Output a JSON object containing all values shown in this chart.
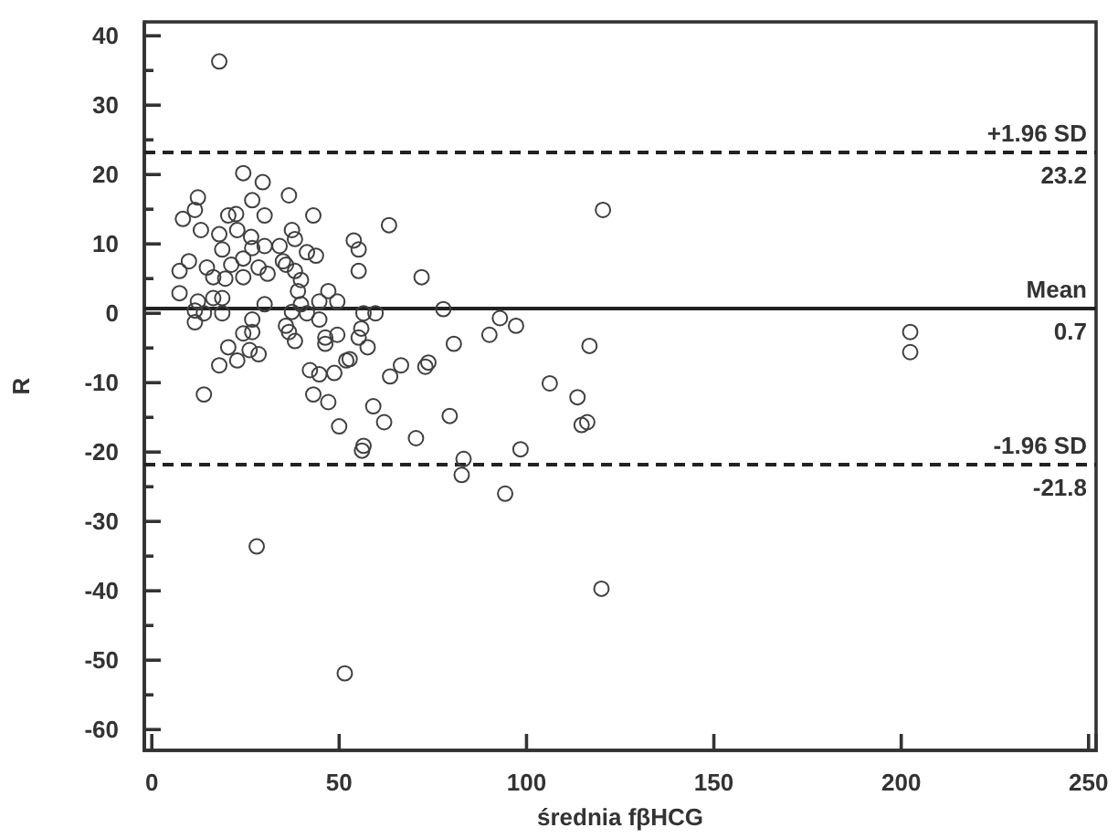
{
  "chart_data": {
    "type": "scatter",
    "xlabel": "średnia fβHCG",
    "ylabel": "R",
    "marker": "circle",
    "color": "#404040",
    "xlim": [
      -2,
      252
    ],
    "ylim": [
      -63,
      42
    ],
    "xticks": [
      0,
      50,
      100,
      150,
      200,
      250
    ],
    "yticks": [
      {
        "value": -60,
        "label": "-60"
      },
      {
        "value": -55,
        "label": null
      },
      {
        "value": -50,
        "label": "-50"
      },
      {
        "value": -45,
        "label": null
      },
      {
        "value": -40,
        "label": "-40"
      },
      {
        "value": -35,
        "label": null
      },
      {
        "value": -30,
        "label": "-30"
      },
      {
        "value": -25,
        "label": null
      },
      {
        "value": -20,
        "label": "-20"
      },
      {
        "value": -15,
        "label": null
      },
      {
        "value": -10,
        "label": "-10"
      },
      {
        "value": -5,
        "label": null
      },
      {
        "value": 0,
        "label": "0"
      },
      {
        "value": 5,
        "label": null
      },
      {
        "value": 10,
        "label": "10"
      },
      {
        "value": 15,
        "label": null
      },
      {
        "value": 20,
        "label": "20"
      },
      {
        "value": 25,
        "label": null
      },
      {
        "value": 30,
        "label": "30"
      },
      {
        "value": 35,
        "label": null
      },
      {
        "value": 40,
        "label": "40"
      }
    ],
    "grid": false,
    "ref_lines": [
      {
        "axis": "y",
        "value": 23.2,
        "label": "+1.96 SD",
        "line_style": "dashed"
      },
      {
        "axis": "y",
        "value": 0.7,
        "label": "Mean",
        "line_style": "solid"
      },
      {
        "axis": "y",
        "value": -21.8,
        "label": "-1.96 SD",
        "line_style": "dashed"
      }
    ],
    "annotations": [
      {
        "text": "23.2",
        "y": 23.2
      },
      {
        "text": "0.7",
        "y": 0.7
      },
      {
        "text": "-21.8",
        "y": -21.8
      }
    ],
    "x": [
      18,
      28,
      51.5,
      120,
      120.4,
      202.4,
      202.4,
      63.3,
      53.9,
      55.2,
      55.2,
      72,
      77.8,
      56.5,
      59.7,
      55.9,
      55.2,
      57.6,
      52.8,
      92.9,
      97.2,
      90.1,
      80.6,
      116.8,
      66.5,
      73.8,
      73,
      63.6,
      106.2,
      113.6,
      59.1,
      62,
      79.5,
      116.2,
      114.7,
      70.5,
      56.5,
      56.1,
      98.4,
      83.2,
      82.7,
      94.3,
      24.4,
      29.6,
      36.6,
      12.3,
      26.8,
      11.5,
      8.3,
      20.4,
      22.5,
      30.1,
      43.1,
      13.1,
      18,
      22.8,
      26.5,
      37.4,
      18.8,
      26.8,
      30.1,
      34.1,
      38.2,
      41.4,
      43.8,
      9.9,
      14.7,
      21.2,
      24.4,
      28.5,
      35,
      35.8,
      7.4,
      16.4,
      19.6,
      24.4,
      30.9,
      38.2,
      39.8,
      7.4,
      12.3,
      16.4,
      18.8,
      30.1,
      39,
      39.8,
      47.1,
      44.7,
      49.5,
      11.5,
      13.9,
      18.8,
      37.4,
      41.4,
      44.7,
      11.5,
      26.8,
      35.8,
      36.6,
      26.8,
      24.4,
      38.2,
      46.3,
      49.5,
      20.4,
      26.1,
      18,
      22.8,
      28.5,
      13.9,
      42.2,
      44.7,
      48.7,
      51.9,
      43.1,
      47.1,
      50,
      46.3
    ],
    "values": [
      36.3,
      -33.6,
      -51.9,
      -39.7,
      14.9,
      -2.7,
      -5.6,
      12.7,
      10.5,
      9.2,
      6.1,
      5.2,
      0.6,
      0,
      0,
      -2.2,
      -3.5,
      -4.9,
      -6.6,
      -0.7,
      -1.8,
      -3.1,
      -4.4,
      -4.7,
      -7.5,
      -7.1,
      -7.7,
      -9.1,
      -10.1,
      -12.1,
      -13.4,
      -15.7,
      -14.8,
      -15.7,
      -16.1,
      -18,
      -19.1,
      -19.8,
      -19.6,
      -21,
      -23.3,
      -26,
      20.2,
      18.9,
      17,
      16.7,
      16.3,
      14.9,
      13.6,
      14.1,
      14.3,
      14.1,
      14.1,
      12,
      11.4,
      12,
      11,
      12,
      9.2,
      9.4,
      9.7,
      9.7,
      10.7,
      8.8,
      8.3,
      7.5,
      6.6,
      7,
      7.9,
      6.6,
      7.5,
      7,
      6.1,
      5.2,
      5,
      5.2,
      5.7,
      6.1,
      4.8,
      2.9,
      1.7,
      2.2,
      2.2,
      1.3,
      3.2,
      1.3,
      3.2,
      1.7,
      1.7,
      0.4,
      0,
      0,
      0.2,
      0,
      -0.9,
      -1.3,
      -0.9,
      -1.8,
      -2.7,
      -2.7,
      -2.9,
      -4,
      -3.5,
      -3.1,
      -4.9,
      -5.3,
      -7.5,
      -6.8,
      -5.9,
      -11.7,
      -8.2,
      -8.8,
      -8.6,
      -6.8,
      -11.7,
      -12.8,
      -16.3,
      -4.4
    ]
  }
}
